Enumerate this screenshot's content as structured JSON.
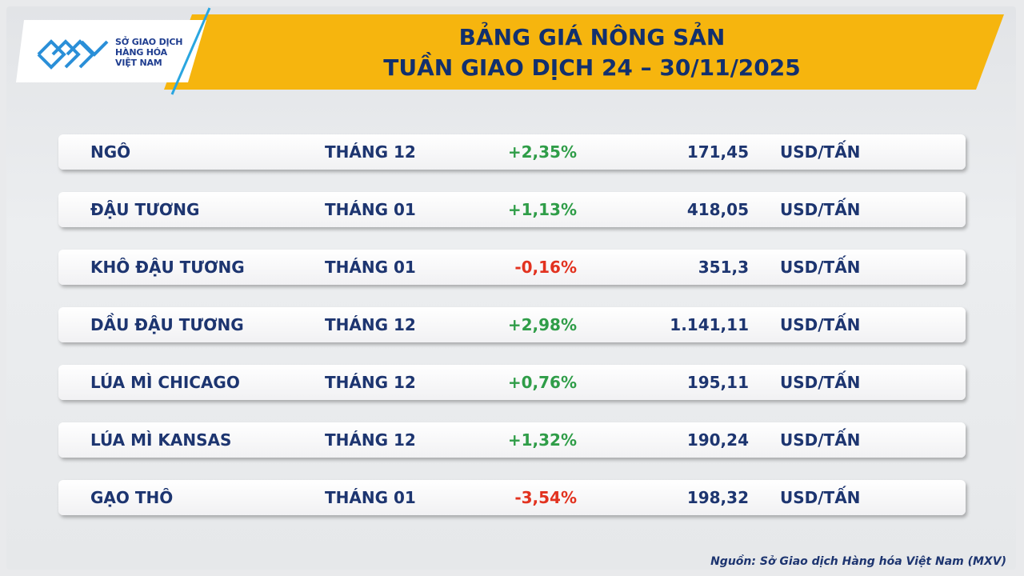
{
  "header": {
    "logo": [
      "SỞ GIAO DỊCH",
      "HÀNG HÓA",
      "VIỆT NAM"
    ],
    "title": [
      "BẢNG GIÁ NÔNG SẢN",
      "TUẦN GIAO DỊCH 24 – 30/11/2025"
    ]
  },
  "table": {
    "rows": [
      [
        "NGÔ",
        "THÁNG 12",
        "+2,35%",
        "171,45",
        "USD/TẤN"
      ],
      [
        "ĐẬU TƯƠNG",
        "THÁNG 01",
        "+1,13%",
        "418,05",
        "USD/TẤN"
      ],
      [
        "KHÔ ĐẬU TƯƠNG",
        "THÁNG 01",
        "-0,16%",
        "351,3",
        "USD/TẤN"
      ],
      [
        "DẦU ĐẬU TƯƠNG",
        "THÁNG 12",
        "+2,98%",
        "1.141,11",
        "USD/TẤN"
      ],
      [
        "LÚA MÌ CHICAGO",
        "THÁNG 12",
        "+0,76%",
        "195,11",
        "USD/TẤN"
      ],
      [
        "LÚA MÌ KANSAS",
        "THÁNG 12",
        "+1,32%",
        "190,24",
        "USD/TẤN"
      ],
      [
        "GẠO THÔ",
        "THÁNG 01",
        "-3,54%",
        "198,32",
        "USD/TẤN"
      ]
    ]
  },
  "source": "Nguồn: Sở Giao dịch Hàng hóa Việt Nam (MXV)"
}
